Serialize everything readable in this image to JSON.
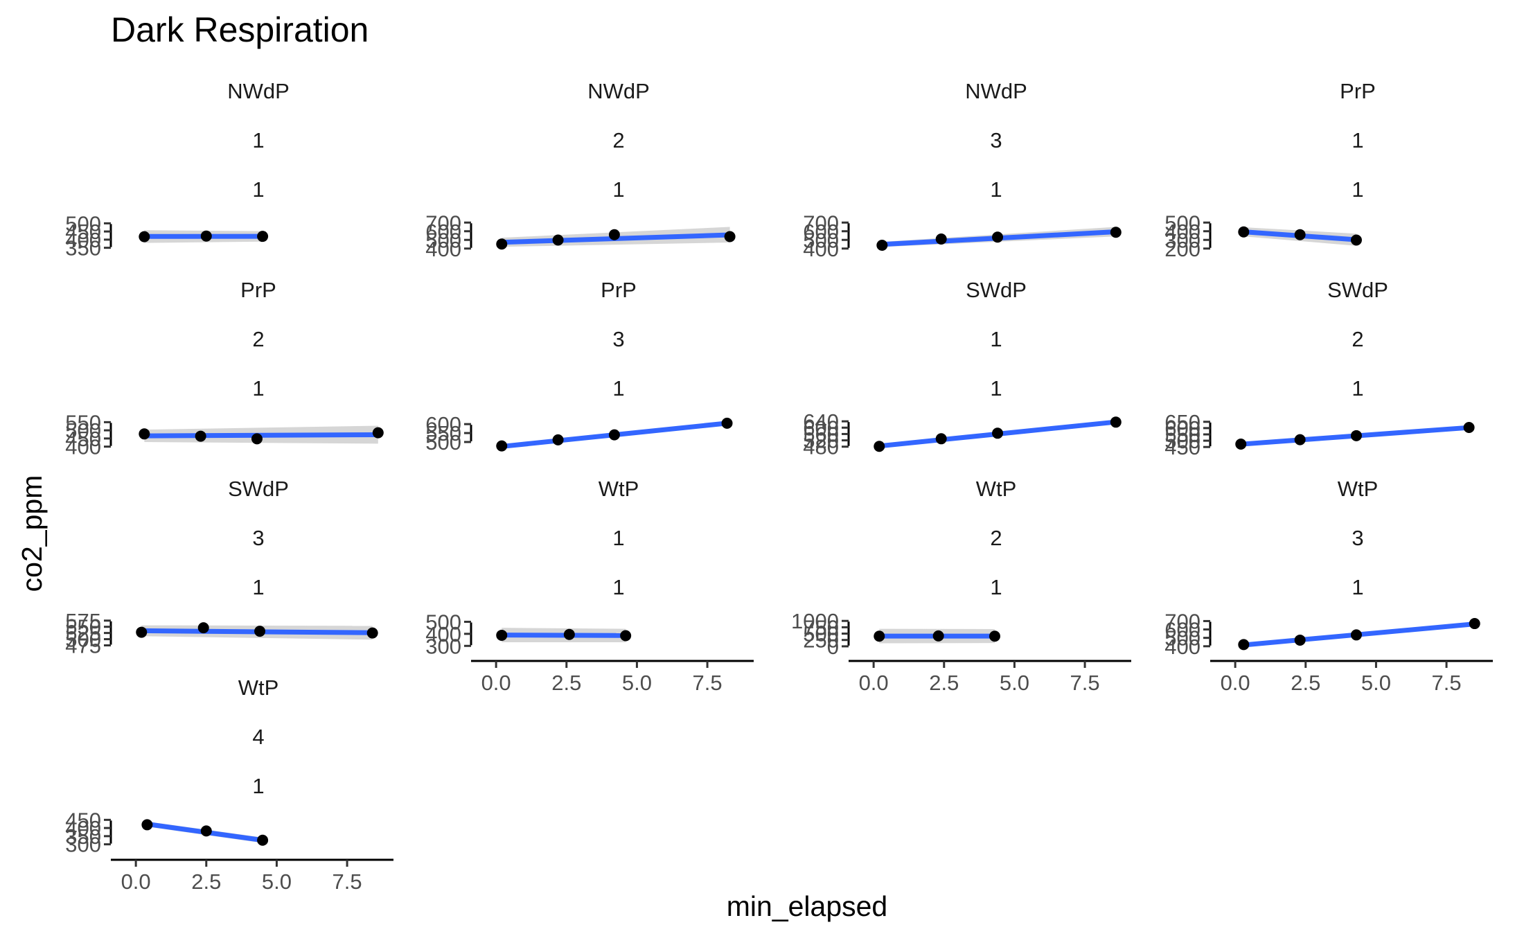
{
  "chart_data": {
    "type": "scatter",
    "title": "Dark Respiration",
    "xlabel": "min_elapsed",
    "ylabel": "co2_ppm",
    "xlim": [
      -0.2,
      8.9
    ],
    "x_ticks": [
      0.0,
      2.5,
      5.0,
      7.5
    ],
    "x_tick_labels": [
      "0.0",
      "2.5",
      "5.0",
      "7.5"
    ],
    "smooth": "lm with confidence band",
    "panels": [
      {
        "strip": [
          "NWdP",
          "1",
          "1"
        ],
        "ylim": [
          340,
          510
        ],
        "y_ticks": [
          350,
          400,
          450,
          500
        ],
        "y_tick_labels": [
          "350",
          "400",
          "450",
          "500"
        ],
        "points": [
          {
            "x": 0.3,
            "y": 418
          },
          {
            "x": 2.5,
            "y": 422
          },
          {
            "x": 4.5,
            "y": 420
          }
        ],
        "fit": [
          419.5,
          420.0
        ],
        "band_lo": [
          380,
          388
        ],
        "band_hi": [
          458,
          452
        ]
      },
      {
        "strip": [
          "NWdP",
          "2",
          "1"
        ],
        "ylim": [
          390,
          710
        ],
        "y_ticks": [
          400,
          500,
          600,
          700
        ],
        "y_tick_labels": [
          "400",
          "500",
          "600",
          "700"
        ],
        "points": [
          {
            "x": 0.2,
            "y": 452
          },
          {
            "x": 2.2,
            "y": 498
          },
          {
            "x": 4.2,
            "y": 560
          },
          {
            "x": 8.3,
            "y": 538
          }
        ],
        "fit": [
          472,
          558
        ],
        "band_lo": [
          420,
          470
        ],
        "band_hi": [
          525,
          650
        ]
      },
      {
        "strip": [
          "NWdP",
          "3",
          "1"
        ],
        "ylim": [
          390,
          710
        ],
        "y_ticks": [
          400,
          500,
          600,
          700
        ],
        "y_tick_labels": [
          "400",
          "500",
          "600",
          "700"
        ],
        "points": [
          {
            "x": 0.3,
            "y": 438
          },
          {
            "x": 2.4,
            "y": 510
          },
          {
            "x": 4.4,
            "y": 532
          },
          {
            "x": 8.6,
            "y": 588
          }
        ],
        "fit": [
          448,
          594
        ],
        "band_lo": [
          418,
          540
        ],
        "band_hi": [
          478,
          650
        ]
      },
      {
        "strip": [
          "PrP",
          "1",
          "1"
        ],
        "ylim": [
          190,
          510
        ],
        "y_ticks": [
          200,
          300,
          400,
          500
        ],
        "y_tick_labels": [
          "200",
          "300",
          "400",
          "500"
        ],
        "points": [
          {
            "x": 0.3,
            "y": 392
          },
          {
            "x": 2.3,
            "y": 360
          },
          {
            "x": 4.3,
            "y": 298
          }
        ],
        "fit": [
          393,
          302
        ],
        "band_lo": [
          340,
          232
        ],
        "band_hi": [
          446,
          372
        ]
      },
      {
        "strip": [
          "PrP",
          "2",
          "1"
        ],
        "ylim": [
          390,
          560
        ],
        "y_ticks": [
          400,
          450,
          500,
          550
        ],
        "y_tick_labels": [
          "400",
          "450",
          "500",
          "550"
        ],
        "points": [
          {
            "x": 0.3,
            "y": 478
          },
          {
            "x": 2.3,
            "y": 464
          },
          {
            "x": 4.3,
            "y": 448
          },
          {
            "x": 8.6,
            "y": 485
          }
        ],
        "fit": [
          466,
          473
        ],
        "band_lo": [
          428,
          418
        ],
        "band_hi": [
          504,
          528
        ]
      },
      {
        "strip": [
          "PrP",
          "3",
          "1"
        ],
        "ylim": [
          465,
          620
        ],
        "y_ticks": [
          500,
          550,
          600
        ],
        "y_tick_labels": [
          "500",
          "550",
          "600"
        ],
        "points": [
          {
            "x": 0.2,
            "y": 478
          },
          {
            "x": 2.2,
            "y": 512
          },
          {
            "x": 4.2,
            "y": 540
          },
          {
            "x": 8.2,
            "y": 605
          }
        ],
        "fit": [
          475,
          605
        ],
        "band_lo": [
          468,
          596
        ],
        "band_hi": [
          482,
          614
        ]
      },
      {
        "strip": [
          "SWdP",
          "1",
          "1"
        ],
        "ylim": [
          470,
          645
        ],
        "y_ticks": [
          480,
          520,
          560,
          600,
          640
        ],
        "y_tick_labels": [
          "480",
          "520",
          "560",
          "600",
          "640"
        ],
        "points": [
          {
            "x": 0.2,
            "y": 482
          },
          {
            "x": 2.4,
            "y": 530
          },
          {
            "x": 4.4,
            "y": 565
          },
          {
            "x": 8.6,
            "y": 635
          }
        ],
        "fit": [
          484,
          636
        ],
        "band_lo": [
          478,
          628
        ],
        "band_hi": [
          490,
          644
        ]
      },
      {
        "strip": [
          "SWdP",
          "2",
          "1"
        ],
        "ylim": [
          440,
          660
        ],
        "y_ticks": [
          450,
          500,
          550,
          600,
          650
        ],
        "y_tick_labels": [
          "450",
          "500",
          "550",
          "600",
          "650"
        ],
        "points": [
          {
            "x": 0.2,
            "y": 473
          },
          {
            "x": 2.3,
            "y": 508
          },
          {
            "x": 4.3,
            "y": 540
          },
          {
            "x": 8.3,
            "y": 605
          }
        ],
        "fit": [
          472,
          604
        ],
        "band_lo": [
          462,
          588
        ],
        "band_hi": [
          482,
          620
        ]
      },
      {
        "strip": [
          "SWdP",
          "3",
          "1"
        ],
        "ylim": [
          468,
          580
        ],
        "y_ticks": [
          475,
          500,
          525,
          550,
          575
        ],
        "y_tick_labels": [
          "475",
          "500",
          "525",
          "550",
          "575"
        ],
        "points": [
          {
            "x": 0.2,
            "y": 528
          },
          {
            "x": 2.4,
            "y": 546
          },
          {
            "x": 4.4,
            "y": 532
          },
          {
            "x": 8.4,
            "y": 525
          }
        ],
        "fit": [
          534,
          526
        ],
        "band_lo": [
          512,
          498
        ],
        "band_hi": [
          556,
          554
        ]
      },
      {
        "strip": [
          "WtP",
          "1",
          "1"
        ],
        "ylim": [
          290,
          520
        ],
        "y_ticks": [
          300,
          400,
          500
        ],
        "y_tick_labels": [
          "300",
          "400",
          "500"
        ],
        "points": [
          {
            "x": 0.2,
            "y": 388
          },
          {
            "x": 2.6,
            "y": 395
          },
          {
            "x": 4.6,
            "y": 385
          }
        ],
        "fit": [
          390,
          386
        ],
        "band_lo": [
          330,
          330
        ],
        "band_hi": [
          450,
          442
        ]
      },
      {
        "strip": [
          "WtP",
          "2",
          "1"
        ],
        "ylim": [
          -30,
          1060
        ],
        "y_ticks": [
          0,
          250,
          500,
          750,
          1000
        ],
        "y_tick_labels": [
          "0",
          "250",
          "500",
          "750",
          "1000"
        ],
        "points": [
          {
            "x": 0.2,
            "y": 400
          },
          {
            "x": 2.3,
            "y": 410
          },
          {
            "x": 4.3,
            "y": 400
          }
        ],
        "fit": [
          403,
          402
        ],
        "band_lo": [
          120,
          130
        ],
        "band_hi": [
          690,
          680
        ]
      },
      {
        "strip": [
          "WtP",
          "3",
          "1"
        ],
        "ylim": [
          390,
          720
        ],
        "y_ticks": [
          400,
          500,
          600,
          700
        ],
        "y_tick_labels": [
          "400",
          "500",
          "600",
          "700"
        ],
        "points": [
          {
            "x": 0.3,
            "y": 420
          },
          {
            "x": 2.3,
            "y": 473
          },
          {
            "x": 4.3,
            "y": 535
          },
          {
            "x": 8.5,
            "y": 670
          }
        ],
        "fit": [
          415,
          665
        ],
        "band_lo": [
          402,
          648
        ],
        "band_hi": [
          430,
          685
        ]
      },
      {
        "strip": [
          "WtP",
          "4",
          "1"
        ],
        "ylim": [
          290,
          460
        ],
        "y_ticks": [
          300,
          350,
          400,
          450
        ],
        "y_tick_labels": [
          "300",
          "350",
          "400",
          "450"
        ],
        "points": [
          {
            "x": 0.4,
            "y": 420
          },
          {
            "x": 2.5,
            "y": 382
          },
          {
            "x": 4.5,
            "y": 325
          }
        ],
        "fit": [
          424,
          325
        ],
        "band_lo": [
          408,
          308
        ],
        "band_hi": [
          440,
          342
        ]
      }
    ]
  }
}
